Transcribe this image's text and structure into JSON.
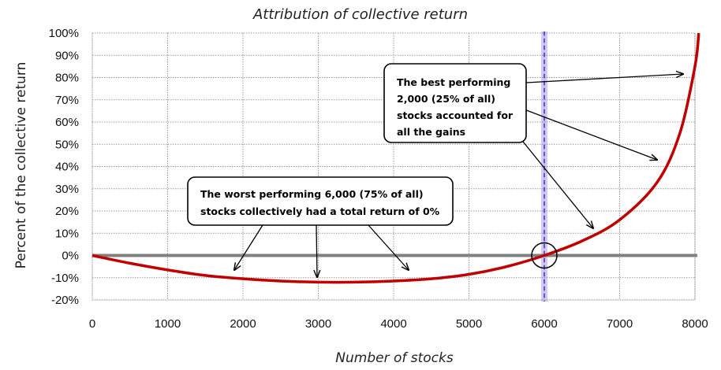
{
  "chart_data": {
    "type": "line",
    "title": "Attribution of collective return",
    "xlabel": "Number of stocks",
    "ylabel": "Percent of the collective return",
    "xlim": [
      0,
      8000
    ],
    "ylim": [
      -20,
      100
    ],
    "x_ticks": [
      "0",
      "1000",
      "2000",
      "3000",
      "4000",
      "5000",
      "6000",
      "7000",
      "8000"
    ],
    "y_ticks": [
      "100%",
      "90%",
      "80%",
      "70%",
      "60%",
      "50%",
      "40%",
      "30%",
      "20%",
      "10%",
      "0%",
      "-10%",
      "-20%"
    ],
    "grid": true,
    "x": [
      0,
      500,
      1000,
      1500,
      2000,
      2500,
      3000,
      3500,
      4000,
      4500,
      5000,
      5500,
      6000,
      6500,
      7000,
      7500,
      7800,
      8000,
      8050
    ],
    "values": [
      0,
      -3.5,
      -6.5,
      -9,
      -10.5,
      -11.5,
      -12,
      -12,
      -11.5,
      -10.5,
      -8.5,
      -5,
      0,
      6.5,
      16,
      33,
      55,
      85,
      100
    ],
    "reference_line_x": 6000,
    "zero_line": true,
    "colors": {
      "series": "#c00000",
      "zero_line": "#808080",
      "reference_line": "#7b68ee"
    },
    "annotations": [
      {
        "lines": [
          "The worst performing  6,000 (75% of all)",
          "stocks collectively had a total return of 0%"
        ]
      },
      {
        "lines": [
          "The best performing",
          "2,000 (25% of all)",
          "stocks accounted for",
          "all the gains"
        ]
      }
    ]
  }
}
